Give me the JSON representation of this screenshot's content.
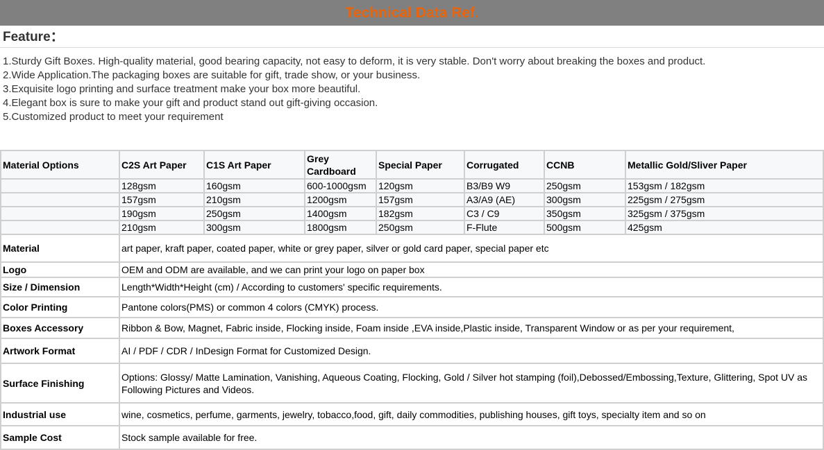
{
  "title": "Technical Data Ref.",
  "feature_heading": "Feature：",
  "features": [
    "1.Sturdy Gift Boxes. High-quality material, good bearing capacity, not easy to deform, it is very stable. Don't worry about breaking the boxes and product.",
    "2.Wide Application.The packaging boxes are suitable for gift, trade show, or your business.",
    "3.Exquisite logo printing and surface treatment make your box more beautiful.",
    "4.Elegant box is sure to make your gift and product stand out gift-giving occasion.",
    "5.Customized product to meet your requirement"
  ],
  "options_header": [
    "Material Options",
    "C2S Art Paper",
    "C1S Art Paper",
    "Grey Cardboard",
    "Special Paper",
    "Corrugated",
    "CCNB",
    "Metallic Gold/Sliver Paper"
  ],
  "options_rows": [
    [
      "",
      "128gsm",
      "160gsm",
      "600-1000gsm",
      "120gsm",
      "B3/B9 W9",
      "250gsm",
      "153gsm / 182gsm"
    ],
    [
      "",
      "157gsm",
      "210gsm",
      "1200gsm",
      "157gsm",
      "A3/A9 (AE)",
      "300gsm",
      "225gsm / 275gsm"
    ],
    [
      "",
      "190gsm",
      "250gsm",
      "1400gsm",
      "182gsm",
      "C3 / C9",
      "350gsm",
      "325gsm / 375gsm"
    ],
    [
      "",
      "210gsm",
      "300gsm",
      "1800gsm",
      "250gsm",
      "F-Flute",
      "500gsm",
      "425gsm"
    ]
  ],
  "specs": [
    {
      "label": "Material",
      "value": "art paper, kraft paper, coated paper, white or grey paper, silver or gold card paper, special paper etc"
    },
    {
      "label": "Logo",
      "value": "OEM and ODM are available, and we can print your logo on paper box"
    },
    {
      "label": "Size / Dimension",
      "value": "Length*Width*Height (cm) / According to customers' specific requirements."
    },
    {
      "label": "Color Printing",
      "value": "Pantone colors(PMS) or common 4 colors (CMYK) process."
    },
    {
      "label": "Boxes Accessory",
      "value": "Ribbon & Bow, Magnet, Fabric inside, Flocking inside, Foam inside ,EVA inside,Plastic inside, Transparent Window or as per your requirement,"
    },
    {
      "label": "Artwork Format",
      "value": "AI / PDF / CDR / InDesign Format for Customized Design."
    },
    {
      "label": "Surface Finishing",
      "value": "Options: Glossy/ Matte Lamination, Vanishing, Aqueous Coating, Flocking, Gold / Silver hot stamping (foil),Debossed/Embossing,Texture, Glittering, Spot UV as Following Pictures and Videos."
    },
    {
      "label": "Industrial use",
      "value": "wine, cosmetics, perfume, garments, jewelry, tobacco,food, gift, daily commodities, publishing houses, gift toys, specialty item and so on"
    },
    {
      "label": "Sample Cost",
      "value": "Stock sample available for free."
    }
  ]
}
